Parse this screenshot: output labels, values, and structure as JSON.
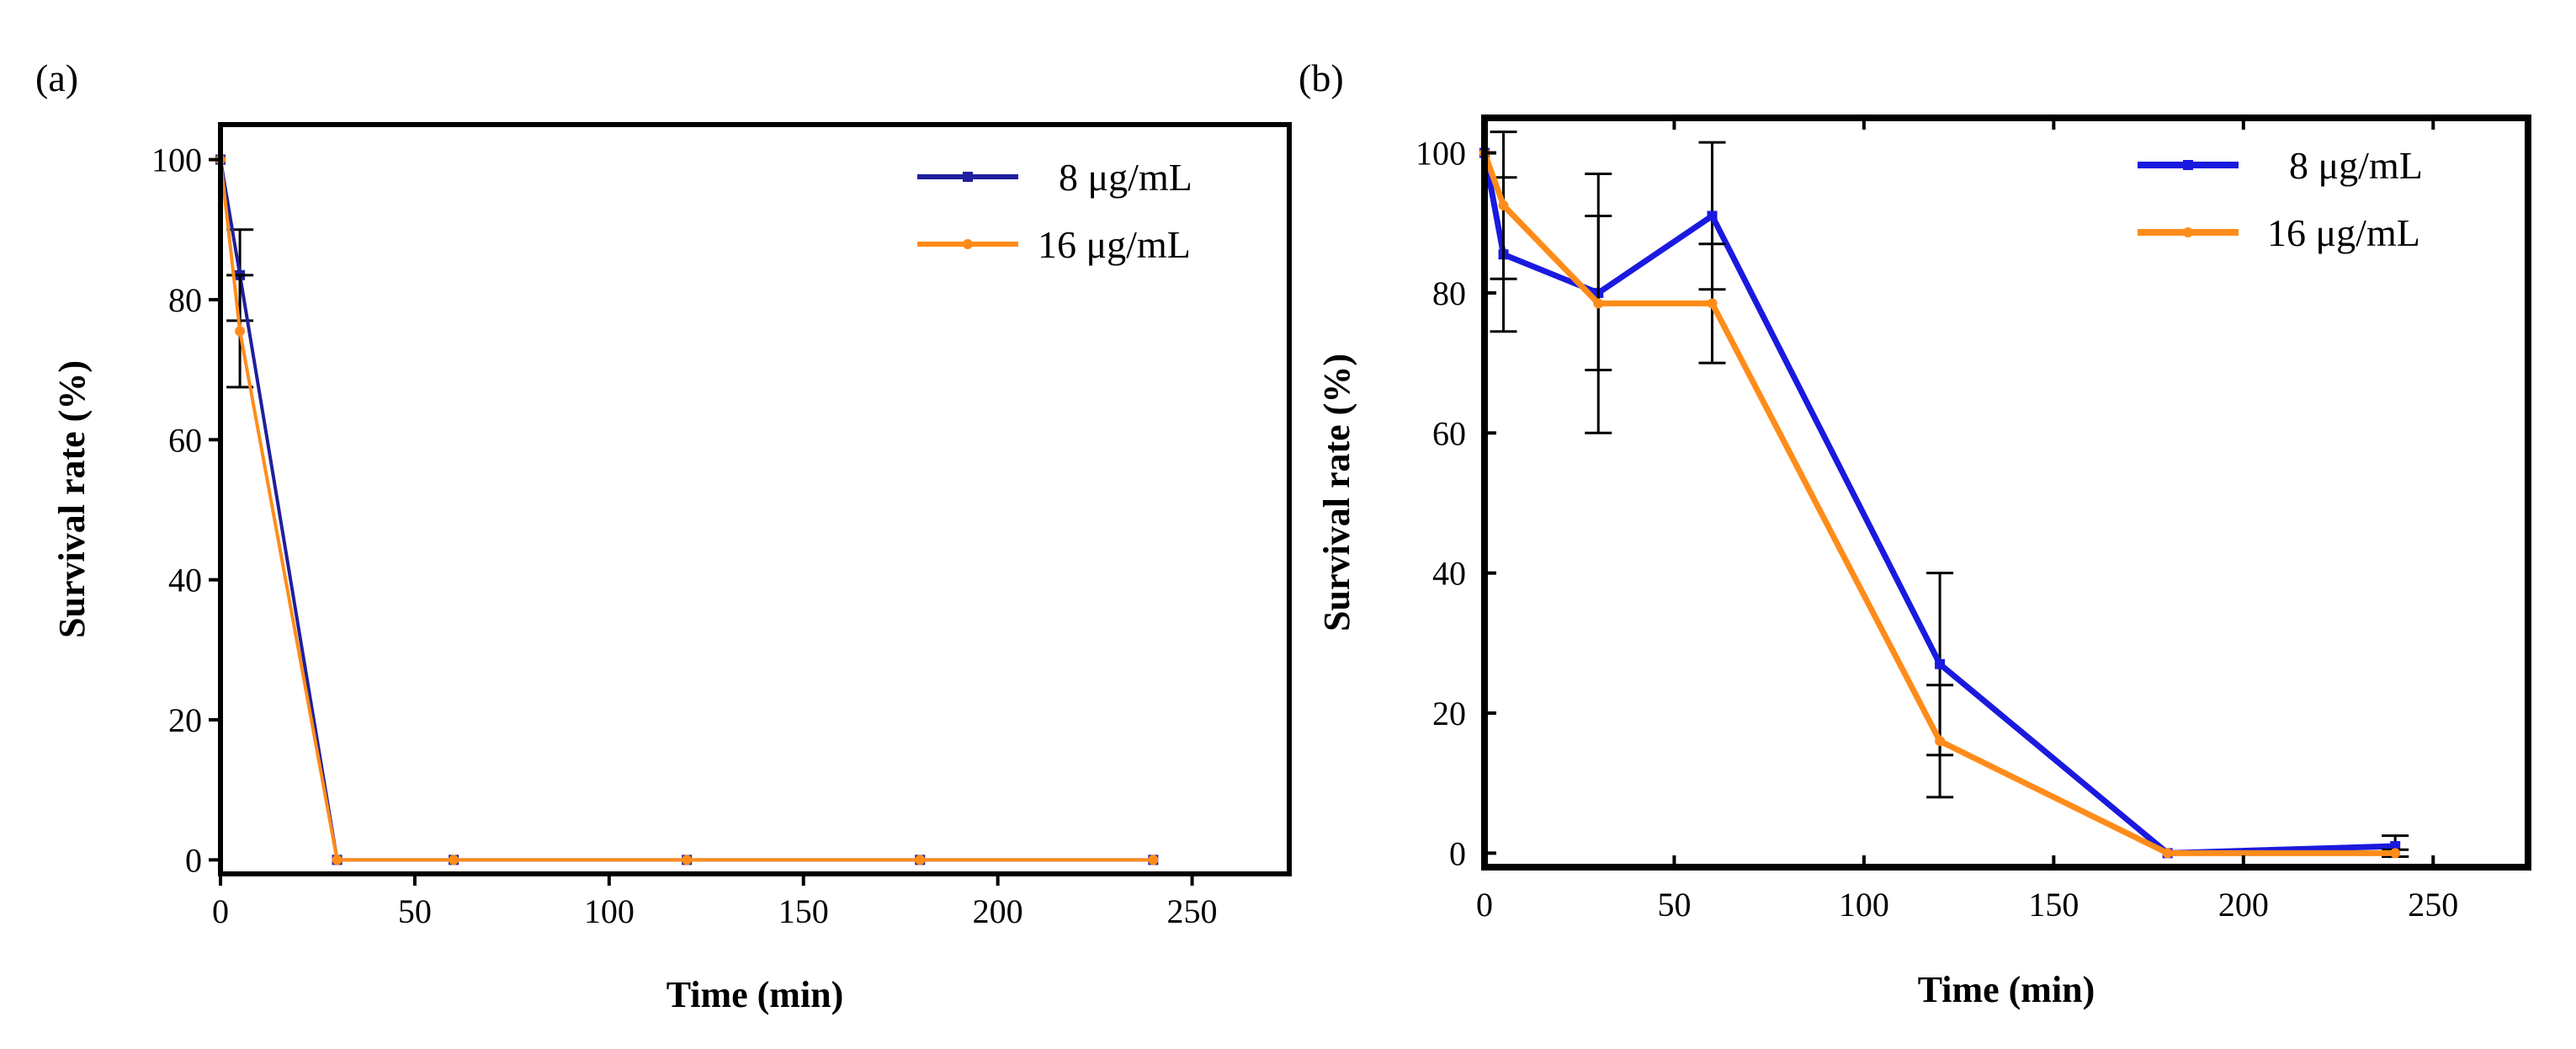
{
  "chart_data": [
    {
      "panel": "(a)",
      "type": "line",
      "xlabel": "Time (min)",
      "ylabel": "Survival rate (%)",
      "xlim": [
        0,
        275
      ],
      "ylim": [
        -2,
        105
      ],
      "xticks": [
        0,
        50,
        100,
        150,
        200,
        250
      ],
      "yticks": [
        0,
        20,
        40,
        60,
        80,
        100
      ],
      "legend_position": "top-right",
      "series": [
        {
          "name": "8 μg/mL",
          "color": "#1f1f9e",
          "x": [
            0,
            5,
            30,
            60,
            120,
            180,
            240
          ],
          "y": [
            100,
            83.5,
            0,
            0,
            0,
            0,
            0
          ],
          "error": [
            0,
            6.5,
            0,
            0,
            0,
            0,
            0
          ]
        },
        {
          "name": "16 μg/mL",
          "color": "#ff8c1a",
          "x": [
            0,
            5,
            30,
            60,
            120,
            180,
            240
          ],
          "y": [
            100,
            75.5,
            0,
            0,
            0,
            0,
            0
          ],
          "error": [
            0,
            8,
            0,
            0,
            0,
            0,
            0
          ]
        }
      ]
    },
    {
      "panel": "(b)",
      "type": "line",
      "xlabel": "Time (min)",
      "ylabel": "Survival rate (%)",
      "xlim": [
        0,
        275
      ],
      "ylim": [
        -2,
        105
      ],
      "xticks": [
        0,
        50,
        100,
        150,
        200,
        250
      ],
      "yticks": [
        0,
        20,
        40,
        60,
        80,
        100
      ],
      "legend_position": "top-right",
      "series": [
        {
          "name": "8 μg/mL",
          "color": "#1a1adf",
          "x": [
            0,
            5,
            30,
            60,
            120,
            180,
            240
          ],
          "y": [
            100,
            85.5,
            80,
            91,
            27,
            0,
            1
          ],
          "error": [
            0,
            11,
            11,
            10.5,
            13,
            0,
            1.5
          ]
        },
        {
          "name": "16 μg/mL",
          "color": "#ff8c1a",
          "x": [
            0,
            5,
            30,
            60,
            120,
            180,
            240
          ],
          "y": [
            100,
            92.5,
            78.5,
            78.5,
            16,
            0,
            0
          ],
          "error": [
            0,
            10.5,
            18.5,
            8.5,
            8,
            0,
            0.5
          ]
        }
      ]
    }
  ]
}
